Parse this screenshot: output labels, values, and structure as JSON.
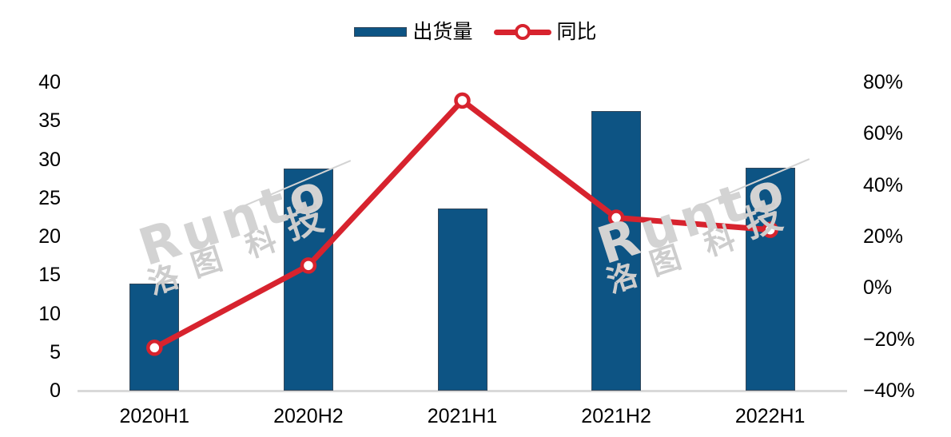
{
  "colors": {
    "bar": "#0D5484",
    "bar_border": "#33475A",
    "line": "#D7232E",
    "axis_line": "#D9D9D9",
    "marker_fill": "#FFFFFF",
    "watermark": "#D3D3D3",
    "watermark_char": "#CDCDCD"
  },
  "watermark": {
    "brand": "Runto",
    "chars": [
      "洛",
      "图",
      "科",
      "技"
    ]
  },
  "chart_data": {
    "type": "bar+line",
    "categories": [
      "2020H1",
      "2020H2",
      "2021H1",
      "2021H2",
      "2022H1"
    ],
    "series": [
      {
        "name": "出货量",
        "type": "bar",
        "axis": "left",
        "values": [
          13.9,
          28.8,
          23.6,
          36.3,
          28.9
        ]
      },
      {
        "name": "同比",
        "type": "line",
        "axis": "right",
        "unit": "%",
        "values": [
          -23.3,
          8.7,
          72.9,
          27.3,
          22.6
        ]
      }
    ],
    "left_axis": {
      "min": 0,
      "max": 40,
      "step": 5,
      "ticks": [
        "0",
        "5",
        "10",
        "15",
        "20",
        "25",
        "30",
        "35",
        "40"
      ]
    },
    "right_axis": {
      "min": -40,
      "max": 80,
      "step": 20,
      "ticks": [
        "−40%",
        "−20%",
        "0%",
        "20%",
        "40%",
        "60%",
        "80%"
      ]
    },
    "grid": false,
    "legend_position": "top",
    "title": ""
  }
}
